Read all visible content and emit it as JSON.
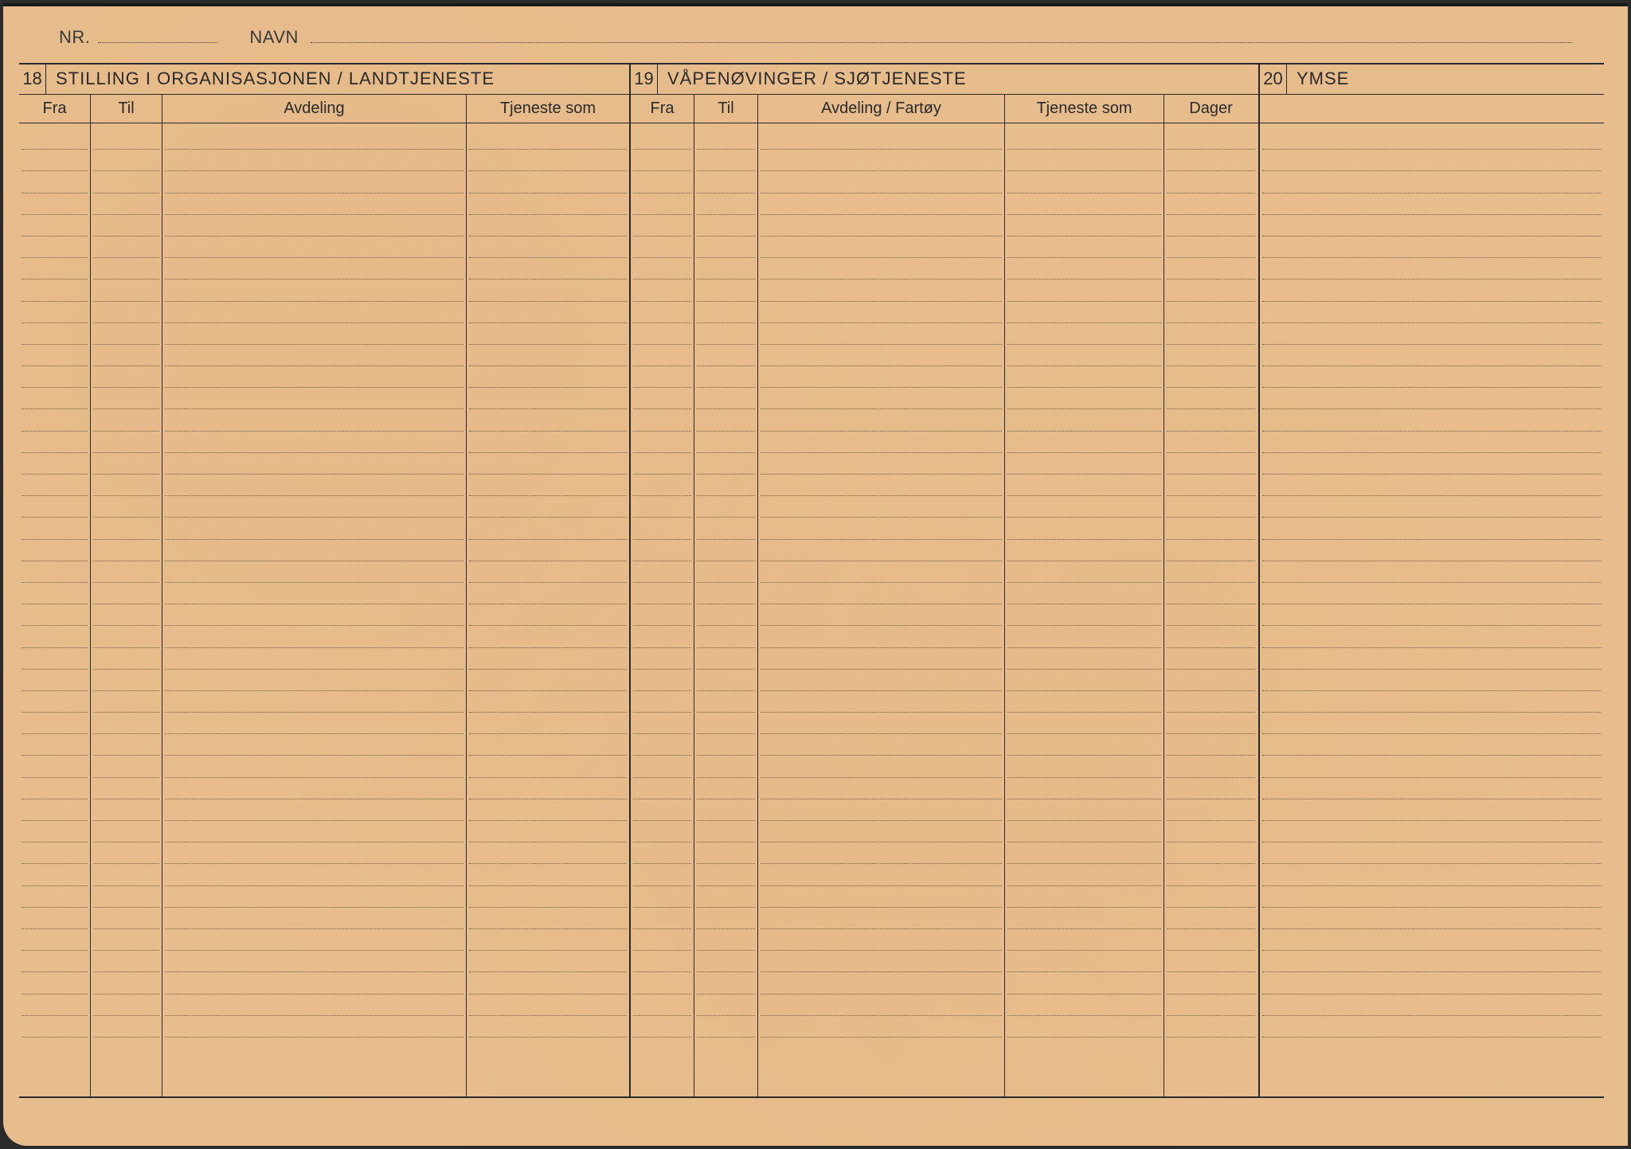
{
  "header": {
    "nr_label": "NR.",
    "navn_label": "NAVN"
  },
  "section18": {
    "number": "18",
    "title": "STILLING I ORGANISASJONEN / LANDTJENESTE",
    "columns": {
      "fra": "Fra",
      "til": "Til",
      "avdeling": "Avdeling",
      "tjeneste_som": "Tjeneste som"
    }
  },
  "section19": {
    "number": "19",
    "title": "VÅPENØVINGER / SJØTJENESTE",
    "columns": {
      "fra": "Fra",
      "til": "Til",
      "avdeling_fartoy": "Avdeling / Fartøy",
      "tjeneste_som": "Tjeneste som",
      "dager": "Dager"
    }
  },
  "section20": {
    "number": "20",
    "title": "YMSE"
  },
  "layout": {
    "dotted_row_count": 42,
    "card_bg": "#e8bd8d",
    "ink": "#2a2a2a",
    "dotted": "#6b5a45"
  }
}
